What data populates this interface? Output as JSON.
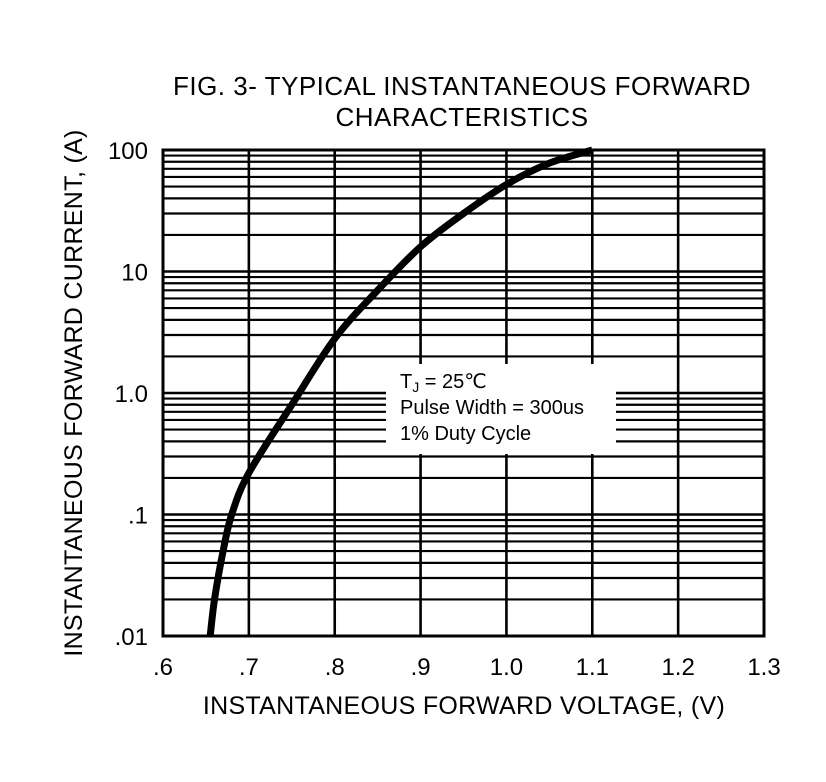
{
  "chart_data": {
    "type": "line",
    "title_line1": "FIG. 3- TYPICAL INSTANTANEOUS FORWARD",
    "title_line2": "CHARACTERISTICS",
    "xlabel": "INSTANTANEOUS FORWARD VOLTAGE, (V)",
    "ylabel": "INSTANTANEOUS FORWARD CURRENT, (A)",
    "x_scale": "linear",
    "y_scale": "log",
    "xlim": [
      0.6,
      1.3
    ],
    "ylim": [
      0.01,
      100
    ],
    "x_ticks": [
      0.6,
      0.7,
      0.8,
      0.9,
      1.0,
      1.1,
      1.2,
      1.3
    ],
    "x_tick_labels": [
      ".6",
      ".7",
      ".8",
      ".9",
      "1.0",
      "1.1",
      "1.2",
      "1.3"
    ],
    "y_ticks": [
      0.01,
      0.1,
      1,
      10,
      100
    ],
    "y_tick_labels": [
      ".01",
      ".1",
      "1.0",
      "10",
      "100"
    ],
    "grid": true,
    "series": [
      {
        "x": [
          0.655,
          0.66,
          0.67,
          0.68,
          0.7,
          0.75,
          0.8,
          0.85,
          0.9,
          0.95,
          1.0,
          1.05,
          1.1
        ],
        "y": [
          0.01,
          0.02,
          0.05,
          0.1,
          0.22,
          0.8,
          2.8,
          7,
          16,
          30,
          52,
          78,
          100
        ]
      }
    ],
    "annotation": {
      "tj_prefix": "T",
      "tj_sub": "J",
      "tj_suffix": " = 25℃",
      "line2": "Pulse Width = 300us",
      "line3": "1% Duty Cycle"
    }
  }
}
